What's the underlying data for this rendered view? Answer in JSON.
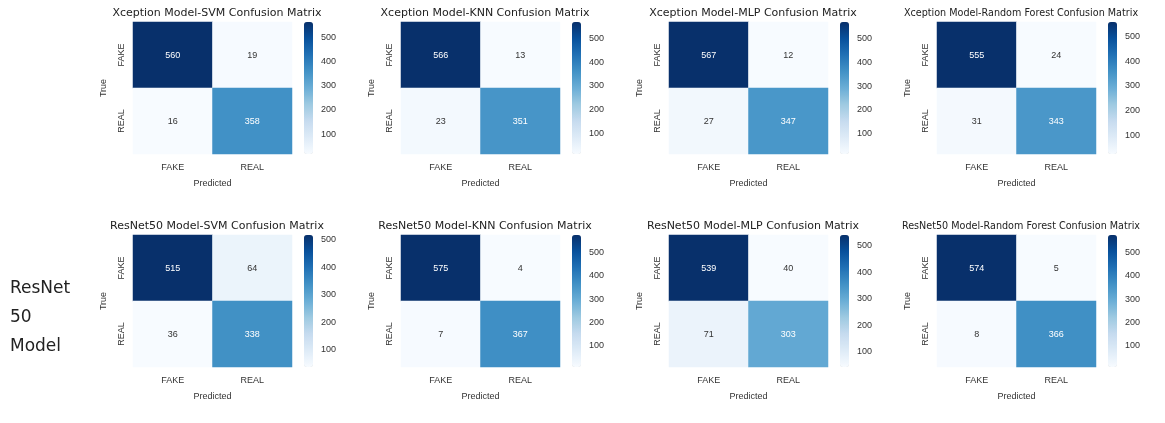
{
  "chart_data": [
    {
      "type": "heatmap",
      "title": "Xception Model-SVM Confusion Matrix",
      "xlabel": "Predicted",
      "ylabel": "True",
      "categories": [
        "FAKE",
        "REAL"
      ],
      "y_categories": [
        "FAKE",
        "REAL"
      ],
      "cells": [
        [
          560,
          19
        ],
        [
          16,
          358
        ]
      ],
      "clim": [
        16,
        560
      ],
      "cticks": [
        100,
        200,
        300,
        400,
        500
      ],
      "data_labels": true
    },
    {
      "type": "heatmap",
      "title": "Xception Model-KNN Confusion Matrix",
      "xlabel": "Predicted",
      "ylabel": "True",
      "categories": [
        "FAKE",
        "REAL"
      ],
      "y_categories": [
        "FAKE",
        "REAL"
      ],
      "cells": [
        [
          566,
          13
        ],
        [
          23,
          351
        ]
      ],
      "clim": [
        13,
        566
      ],
      "cticks": [
        100,
        200,
        300,
        400,
        500
      ],
      "data_labels": true
    },
    {
      "type": "heatmap",
      "title": "Xception Model-MLP Confusion Matrix",
      "xlabel": "Predicted",
      "ylabel": "True",
      "categories": [
        "FAKE",
        "REAL"
      ],
      "y_categories": [
        "FAKE",
        "REAL"
      ],
      "cells": [
        [
          567,
          12
        ],
        [
          27,
          347
        ]
      ],
      "clim": [
        12,
        567
      ],
      "cticks": [
        100,
        200,
        300,
        400,
        500
      ],
      "data_labels": true
    },
    {
      "type": "heatmap",
      "title": "Xception Model-Random Forest Confusion Matrix",
      "xlabel": "Predicted",
      "ylabel": "True",
      "categories": [
        "FAKE",
        "REAL"
      ],
      "y_categories": [
        "FAKE",
        "REAL"
      ],
      "cells": [
        [
          555,
          24
        ],
        [
          31,
          343
        ]
      ],
      "clim": [
        24,
        555
      ],
      "cticks": [
        100,
        200,
        300,
        400,
        500
      ],
      "data_labels": true
    },
    {
      "type": "heatmap",
      "title": "ResNet50 Model-SVM Confusion Matrix",
      "xlabel": "Predicted",
      "ylabel": "True",
      "categories": [
        "FAKE",
        "REAL"
      ],
      "y_categories": [
        "FAKE",
        "REAL"
      ],
      "cells": [
        [
          515,
          64
        ],
        [
          36,
          338
        ]
      ],
      "clim": [
        36,
        515
      ],
      "cticks": [
        100,
        200,
        300,
        400,
        500
      ],
      "data_labels": true,
      "annotations": [
        "ResNet 50 Model"
      ]
    },
    {
      "type": "heatmap",
      "title": "ResNet50 Model-KNN Confusion Matrix",
      "xlabel": "Predicted",
      "ylabel": "True",
      "categories": [
        "FAKE",
        "REAL"
      ],
      "y_categories": [
        "FAKE",
        "REAL"
      ],
      "cells": [
        [
          575,
          4
        ],
        [
          7,
          367
        ]
      ],
      "clim": [
        4,
        575
      ],
      "cticks": [
        100,
        200,
        300,
        400,
        500
      ],
      "data_labels": true
    },
    {
      "type": "heatmap",
      "title": "ResNet50 Model-MLP Confusion Matrix",
      "xlabel": "Predicted",
      "ylabel": "True",
      "categories": [
        "FAKE",
        "REAL"
      ],
      "y_categories": [
        "FAKE",
        "REAL"
      ],
      "cells": [
        [
          539,
          40
        ],
        [
          71,
          303
        ]
      ],
      "clim": [
        40,
        539
      ],
      "cticks": [
        100,
        200,
        300,
        400,
        500
      ],
      "data_labels": true
    },
    {
      "type": "heatmap",
      "title": "ResNet50 Model-Random Forest Confusion Matrix",
      "xlabel": "Predicted",
      "ylabel": "True",
      "categories": [
        "FAKE",
        "REAL"
      ],
      "y_categories": [
        "FAKE",
        "REAL"
      ],
      "cells": [
        [
          574,
          5
        ],
        [
          8,
          366
        ]
      ],
      "clim": [
        5,
        574
      ],
      "cticks": [
        100,
        200,
        300,
        400,
        500
      ],
      "data_labels": true
    }
  ]
}
